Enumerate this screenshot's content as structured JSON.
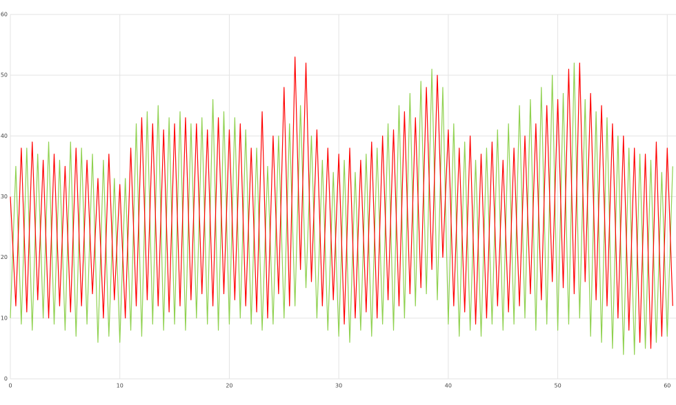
{
  "chart_data": {
    "type": "line",
    "x": [
      0,
      0.5,
      1,
      1.5,
      2,
      2.5,
      3,
      3.5,
      4,
      4.5,
      5,
      5.5,
      6,
      6.5,
      7,
      7.5,
      8,
      8.5,
      9,
      9.5,
      10,
      10.5,
      11,
      11.5,
      12,
      12.5,
      13,
      13.5,
      14,
      14.5,
      15,
      15.5,
      16,
      16.5,
      17,
      17.5,
      18,
      18.5,
      19,
      19.5,
      20,
      20.5,
      21,
      21.5,
      22,
      22.5,
      23,
      23.5,
      24,
      24.5,
      25,
      25.5,
      26,
      26.5,
      27,
      27.5,
      28,
      28.5,
      29,
      29.5,
      30,
      30.5,
      31,
      31.5,
      32,
      32.5,
      33,
      33.5,
      34,
      34.5,
      35,
      35.5,
      36,
      36.5,
      37,
      37.5,
      38,
      38.5,
      39,
      39.5,
      40,
      40.5,
      41,
      41.5,
      42,
      42.5,
      43,
      43.5,
      44,
      44.5,
      45,
      45.5,
      46,
      46.5,
      47,
      47.5,
      48,
      48.5,
      49,
      49.5,
      50,
      50.5,
      51,
      51.5,
      52,
      52.5,
      53,
      53.5,
      54,
      54.5,
      55,
      55.5,
      56,
      56.5,
      57,
      57.5,
      58,
      58.5,
      59,
      59.5,
      60,
      60.5
    ],
    "series": [
      {
        "color": "#8fd14f",
        "values": [
          10,
          35,
          9,
          38,
          8,
          37,
          10,
          39,
          9,
          36,
          8,
          39,
          7,
          38,
          9,
          37,
          6,
          36,
          7,
          33,
          6,
          33,
          8,
          42,
          7,
          44,
          9,
          45,
          8,
          43,
          9,
          44,
          8,
          42,
          10,
          43,
          9,
          46,
          8,
          44,
          9,
          43,
          10,
          41,
          9,
          38,
          8,
          35,
          9,
          40,
          10,
          42,
          12,
          45,
          15,
          40,
          10,
          36,
          8,
          34,
          7,
          36,
          6,
          34,
          8,
          37,
          7,
          38,
          9,
          42,
          8,
          45,
          10,
          47,
          12,
          49,
          14,
          51,
          13,
          48,
          9,
          42,
          7,
          39,
          8,
          36,
          7,
          38,
          9,
          41,
          8,
          42,
          9,
          45,
          10,
          46,
          8,
          48,
          9,
          50,
          8,
          47,
          9,
          52,
          10,
          46,
          7,
          44,
          6,
          43,
          5,
          40,
          4,
          38,
          4,
          37,
          5,
          36,
          6,
          34,
          7,
          35
        ]
      },
      {
        "color": "#ff0000",
        "values": [
          30,
          12,
          38,
          11,
          39,
          13,
          36,
          10,
          37,
          12,
          35,
          11,
          38,
          12,
          36,
          14,
          33,
          10,
          37,
          13,
          32,
          10,
          38,
          12,
          43,
          13,
          42,
          12,
          41,
          11,
          42,
          12,
          43,
          13,
          42,
          14,
          41,
          12,
          43,
          14,
          41,
          13,
          42,
          12,
          38,
          11,
          44,
          10,
          40,
          14,
          48,
          12,
          53,
          18,
          52,
          16,
          41,
          12,
          38,
          13,
          37,
          9,
          38,
          10,
          36,
          11,
          39,
          10,
          40,
          13,
          41,
          12,
          44,
          14,
          43,
          15,
          48,
          18,
          50,
          20,
          41,
          12,
          38,
          11,
          40,
          9,
          37,
          10,
          39,
          12,
          36,
          11,
          38,
          12,
          40,
          14,
          42,
          13,
          45,
          16,
          46,
          15,
          51,
          14,
          52,
          16,
          47,
          13,
          45,
          12,
          42,
          10,
          40,
          8,
          38,
          6,
          37,
          5,
          39,
          7,
          38,
          12
        ]
      }
    ],
    "xlim": [
      0,
      60.8
    ],
    "ylim": [
      0,
      60
    ],
    "xticks": [
      0,
      10,
      20,
      30,
      40,
      50,
      60
    ],
    "yticks": [
      0,
      10,
      20,
      30,
      40,
      50,
      60
    ],
    "grid": true
  }
}
